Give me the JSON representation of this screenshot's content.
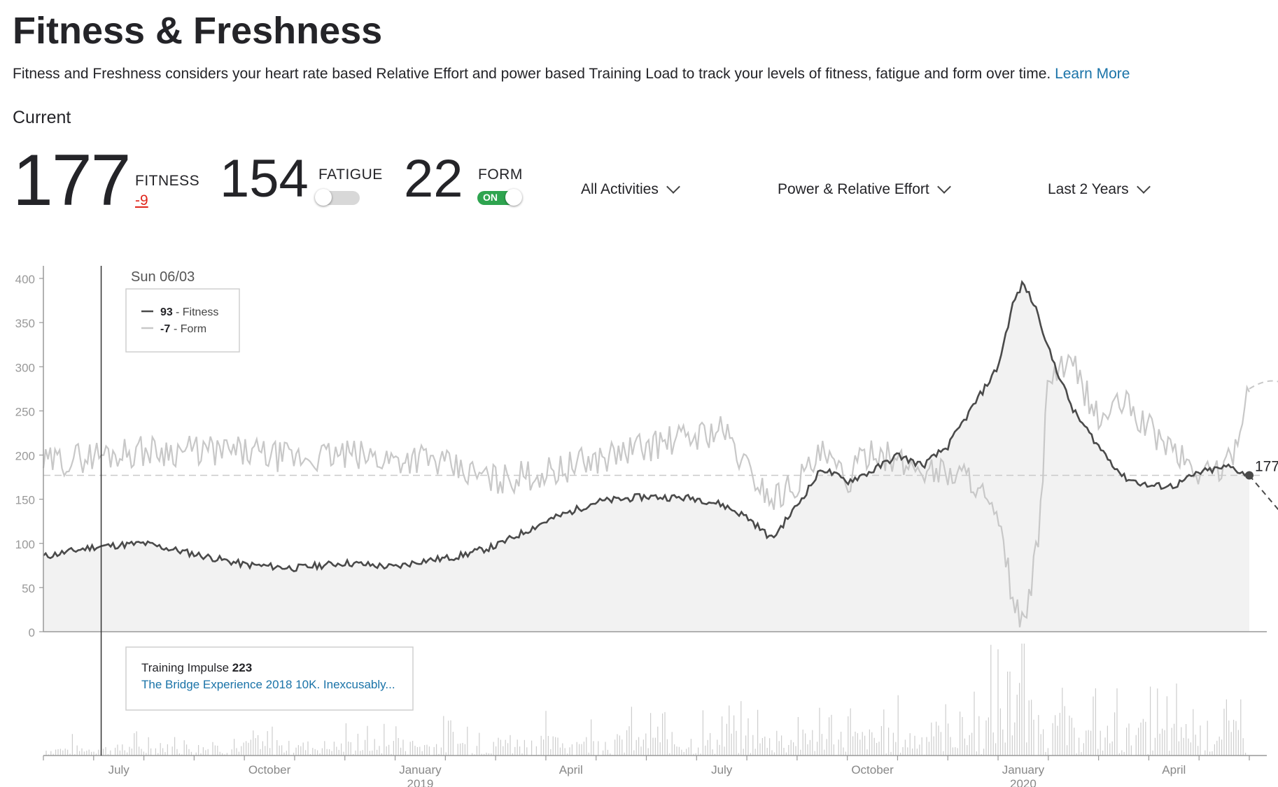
{
  "page": {
    "title": "Fitness & Freshness",
    "description": "Fitness and Freshness considers your heart rate based Relative Effort and power based Training Load to track your levels of fitness, fatigue and form over time.",
    "learn_more": "Learn More"
  },
  "current": {
    "label": "Current",
    "fitness": {
      "value": "177",
      "label": "FITNESS",
      "delta": "-9"
    },
    "fatigue": {
      "value": "154",
      "label": "FATIGUE",
      "toggle": "off"
    },
    "form": {
      "value": "22",
      "label": "FORM",
      "toggle_label": "ON",
      "toggle": "on"
    }
  },
  "filters": {
    "activities": "All Activities",
    "metric": "Power & Relative Effort",
    "range": "Last 2 Years"
  },
  "tooltip": {
    "date": "Sun 06/03",
    "fitness_value": "93",
    "fitness_label": "- Fitness",
    "form_value": "-7",
    "form_label": "- Form"
  },
  "impulse": {
    "label": "Training Impulse",
    "value": "223",
    "activity": "The Bridge Experience 2018 10K. Inexcusably..."
  },
  "end_label": "177",
  "colors": {
    "fitness": "#4a4a4a",
    "form": "#c8c8c8",
    "fill": "#f2f2f2",
    "link": "#1a73a8",
    "negative": "#e0251b",
    "toggle_on": "#2ea44f"
  },
  "chart_data": {
    "type": "line",
    "ylim": [
      0,
      400
    ],
    "y_ticks": [
      "0",
      "50",
      "100",
      "150",
      "200",
      "250",
      "300",
      "350",
      "400"
    ],
    "x_labels": [
      {
        "label": "July",
        "sub": ""
      },
      {
        "label": "October",
        "sub": ""
      },
      {
        "label": "January",
        "sub": "2019"
      },
      {
        "label": "April",
        "sub": ""
      },
      {
        "label": "July",
        "sub": ""
      },
      {
        "label": "October",
        "sub": ""
      },
      {
        "label": "January",
        "sub": "2020"
      },
      {
        "label": "April",
        "sub": ""
      }
    ],
    "x_label_months": [
      1.5,
      4.5,
      7.5,
      10.5,
      13.5,
      16.5,
      19.5,
      22.5
    ],
    "x_months": [
      0,
      1,
      2,
      3,
      4,
      5,
      6,
      7,
      7.5,
      8,
      8.3,
      9,
      10,
      11,
      12,
      13,
      13.5,
      14,
      14.5,
      15,
      15.5,
      16,
      16.5,
      17,
      17.5,
      18,
      18.5,
      19,
      19.3,
      19.5,
      19.8,
      20,
      20.5,
      21,
      21.5,
      22,
      22.5,
      23,
      23.6,
      24
    ],
    "series": [
      {
        "name": "Fitness",
        "values": [
          85,
          96,
          100,
          88,
          76,
          72,
          78,
          73,
          80,
          83,
          86,
          97,
          125,
          147,
          153,
          151,
          144,
          130,
          105,
          143,
          185,
          170,
          182,
          200,
          188,
          210,
          255,
          300,
          372,
          395,
          360,
          320,
          250,
          210,
          175,
          165,
          165,
          180,
          187,
          177
        ]
      },
      {
        "name": "Form",
        "values": [
          190,
          200,
          205,
          205,
          203,
          196,
          200,
          195,
          198,
          188,
          182,
          172,
          180,
          195,
          210,
          222,
          230,
          185,
          150,
          170,
          200,
          170,
          210,
          190,
          185,
          180,
          175,
          120,
          40,
          0,
          100,
          290,
          300,
          240,
          260,
          230,
          205,
          178,
          190,
          275
        ]
      }
    ],
    "projection": {
      "fitness_end": 130,
      "form_end": 280,
      "end_month": 24.7
    },
    "guide_value": 177,
    "tooltip_month": 1.15
  }
}
